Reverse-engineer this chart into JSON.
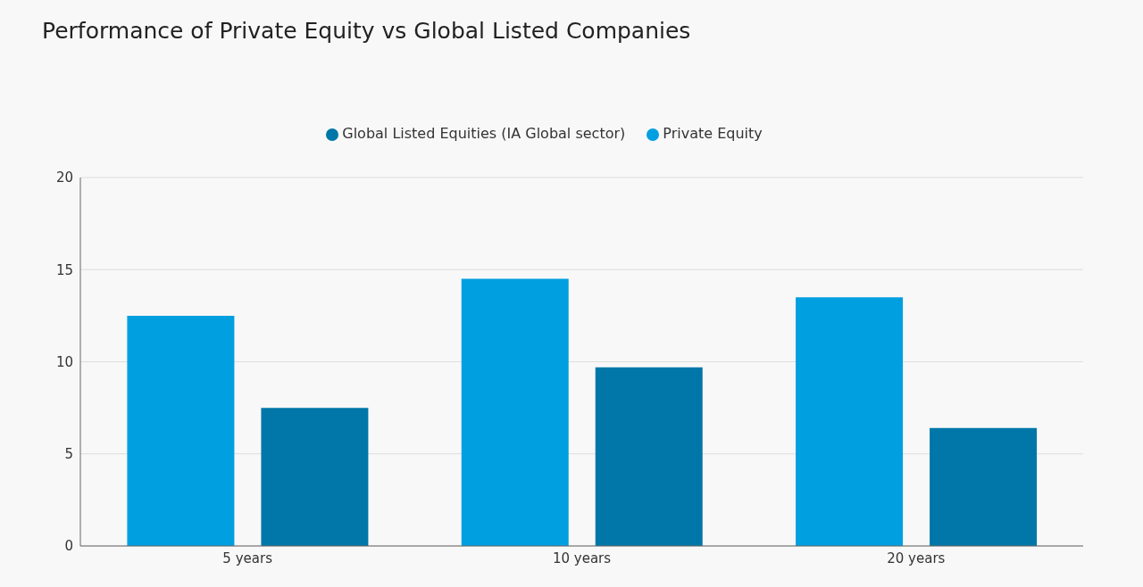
{
  "chart_data": {
    "type": "bar",
    "title": "Performance of Private Equity vs Global Listed Companies",
    "categories": [
      "5 years",
      "10 years",
      "20 years"
    ],
    "series": [
      {
        "name": "Private Equity",
        "color": "#009fe0",
        "values": [
          12.5,
          14.5,
          13.5
        ]
      },
      {
        "name": "Global Listed Equities (IA Global sector)",
        "color": "#0077a8",
        "values": [
          7.5,
          9.7,
          6.4
        ]
      }
    ],
    "ylim": [
      0,
      20
    ],
    "yticks": [
      0,
      5,
      10,
      15,
      20
    ],
    "grid": "y",
    "legend": "top"
  }
}
